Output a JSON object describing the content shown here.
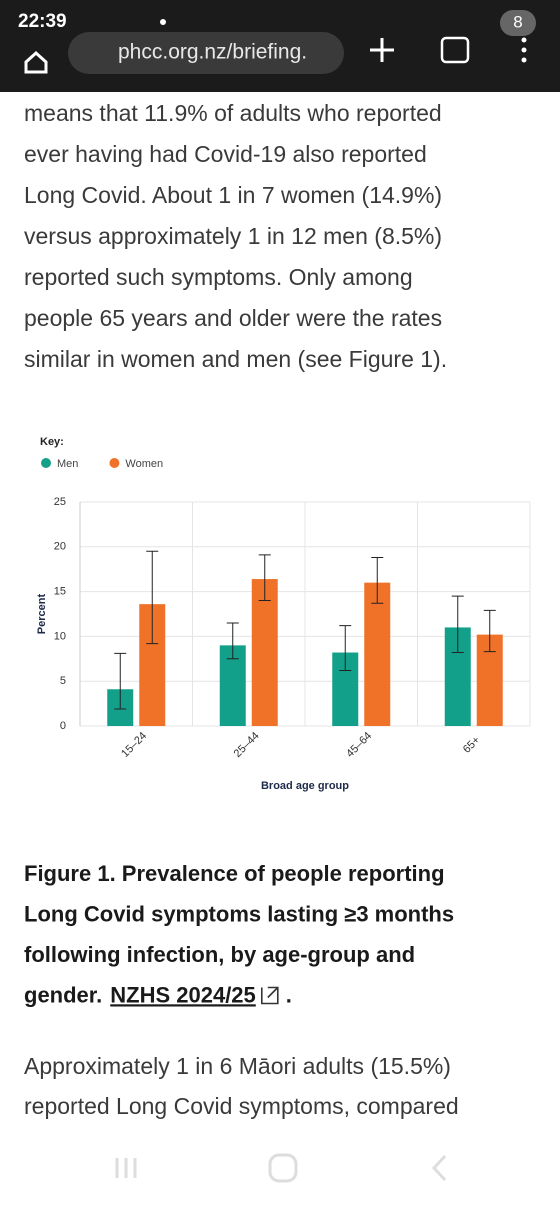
{
  "status_bar": {
    "time": "22:39",
    "badge": "8"
  },
  "browser": {
    "url": "phcc.org.nz/briefing."
  },
  "paragraph_1": [
    "means that 11.9% of adults who reported",
    "ever having had Covid-19 also reported",
    "Long Covid. About 1 in 7 women (14.9%)",
    "versus approximately 1 in 12 men (8.5%)",
    "reported such symptoms. Only among",
    "people 65 years and older were the rates",
    "similar in women and men (see Figure 1)."
  ],
  "chart_data": {
    "type": "bar",
    "key_label": "Key:",
    "x_label": "Broad age group",
    "y_label": "Percent",
    "categories": [
      "15–24",
      "25–44",
      "45–64",
      "65+"
    ],
    "series": [
      {
        "name": "Men",
        "color": "#13a08a",
        "values": [
          4.1,
          9.0,
          8.2,
          11.0
        ],
        "ci_lower": [
          1.9,
          7.5,
          6.2,
          8.2
        ],
        "ci_upper": [
          8.1,
          11.5,
          11.2,
          14.5
        ]
      },
      {
        "name": "Women",
        "color": "#f07228",
        "values": [
          13.6,
          16.4,
          16.0,
          10.2
        ],
        "ci_lower": [
          9.2,
          14.0,
          13.7,
          8.3
        ],
        "ci_upper": [
          19.5,
          19.1,
          18.8,
          12.9
        ]
      }
    ],
    "ylim": [
      0,
      25
    ],
    "yticks": [
      0,
      5,
      10,
      15,
      20,
      25
    ],
    "grid": true
  },
  "caption": {
    "lines": [
      "Figure 1. Prevalence of people reporting",
      "Long Covid symptoms lasting ≥3 months",
      "following infection, by age-group and",
      "gender."
    ],
    "link": "NZHS 2024/25",
    "end": "."
  },
  "paragraph_2": [
    "Approximately 1 in 6 Māori adults (15.5%)",
    "reported Long Covid symptoms, compared"
  ]
}
